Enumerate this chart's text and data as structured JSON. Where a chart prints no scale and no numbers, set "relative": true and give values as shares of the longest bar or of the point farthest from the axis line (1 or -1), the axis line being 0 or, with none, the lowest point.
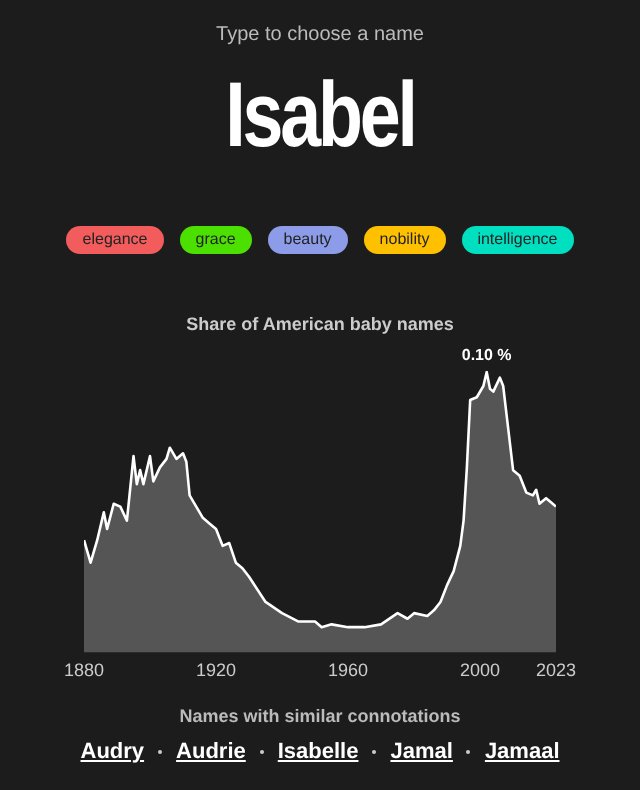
{
  "chart_data": {
    "type": "area",
    "title": "Isabel",
    "subtitle": "Type to choose a name",
    "annotations": [
      "elegance",
      "grace",
      "beauty",
      "nobility",
      "intelligence",
      "Share of American baby names",
      {
        "text": "0.10 %",
        "x": 2002,
        "y": 1
      },
      "Names with similar connotations",
      "Audry",
      "Audrie",
      "Isabelle",
      "Jamal",
      "Jamaal"
    ],
    "x": [
      1880,
      1882,
      1884,
      1886,
      1887,
      1889,
      1891,
      1893,
      1895,
      1896,
      1897,
      1898,
      1900,
      1901,
      1903,
      1905,
      1906,
      1908,
      1910,
      1911,
      1912,
      1914,
      1916,
      1918,
      1920,
      1922,
      1924,
      1926,
      1928,
      1930,
      1935,
      1940,
      1945,
      1948,
      1950,
      1952,
      1955,
      1960,
      1965,
      1970,
      1975,
      1978,
      1980,
      1984,
      1986,
      1988,
      1990,
      1992,
      1994,
      1995,
      1996,
      1997,
      1999,
      2001,
      2002,
      2003,
      2004,
      2006,
      2007,
      2008,
      2010,
      2012,
      2014,
      2016,
      2017,
      2018,
      2020,
      2022,
      2023
    ],
    "series": [
      {
        "color": "#ffffff",
        "values": [
          0.4,
          0.32,
          0.4,
          0.5,
          0.44,
          0.53,
          0.52,
          0.47,
          0.7,
          0.6,
          0.65,
          0.6,
          0.7,
          0.61,
          0.66,
          0.69,
          0.73,
          0.69,
          0.71,
          0.68,
          0.56,
          0.52,
          0.48,
          0.46,
          0.44,
          0.38,
          0.39,
          0.32,
          0.3,
          0.27,
          0.18,
          0.14,
          0.11,
          0.11,
          0.11,
          0.09,
          0.1,
          0.09,
          0.09,
          0.1,
          0.14,
          0.12,
          0.14,
          0.13,
          0.15,
          0.18,
          0.24,
          0.29,
          0.38,
          0.47,
          0.66,
          0.9,
          0.91,
          0.95,
          1,
          0.94,
          0.93,
          0.98,
          0.95,
          0.85,
          0.65,
          0.63,
          0.57,
          0.56,
          0.58,
          0.53,
          0.55,
          0.53,
          0.52
        ]
      }
    ],
    "xlim": [
      1880,
      2023
    ],
    "xticks": [
      1880,
      1920,
      1960,
      2000,
      2023
    ],
    "relative": true,
    "legend": false
  }
}
